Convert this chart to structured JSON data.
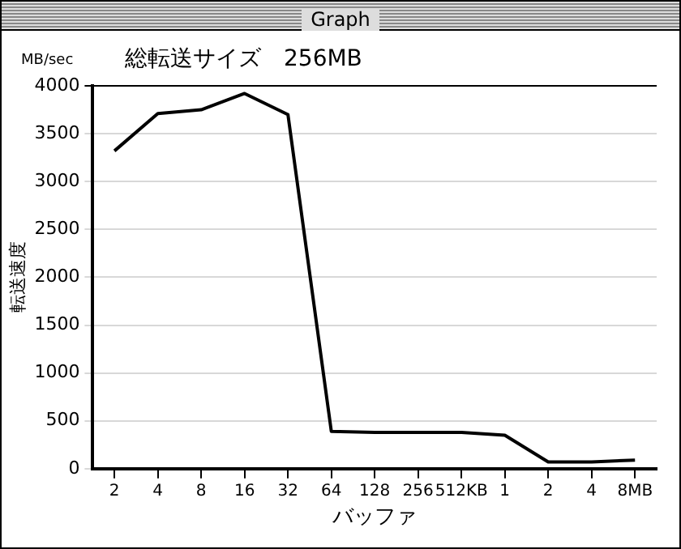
{
  "chart_data": {
    "type": "line",
    "title": "総転送サイズ　256MB",
    "xlabel": "バッファ",
    "ylabel": "転送速度",
    "annotations": [
      "Graph",
      "MB/sec"
    ],
    "categories": [
      "2",
      "4",
      "8",
      "16",
      "32",
      "64",
      "128",
      "256",
      "512KB",
      "1",
      "2",
      "4",
      "8MB"
    ],
    "series": [
      {
        "color": "#000000",
        "values": [
          3320,
          3710,
          3750,
          3920,
          3700,
          390,
          380,
          380,
          380,
          350,
          70,
          70,
          90
        ]
      }
    ],
    "ylim": [
      0,
      4000
    ],
    "yticks": [
      0,
      500,
      1000,
      1500,
      2000,
      2500,
      3000,
      3500,
      4000
    ],
    "grid": "y",
    "legend": false,
    "marker": "none",
    "line_style": "solid"
  }
}
